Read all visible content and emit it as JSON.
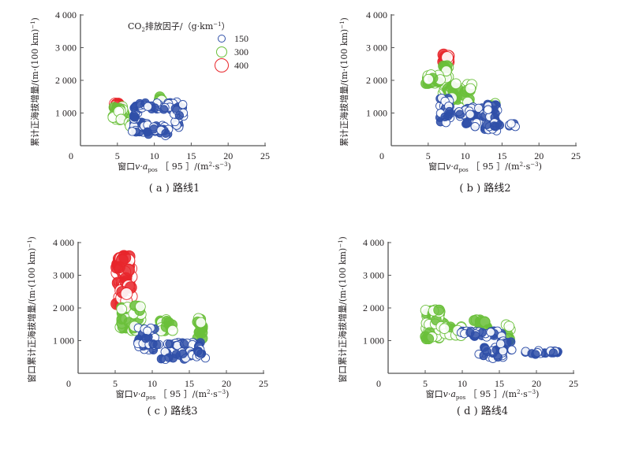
{
  "chart_data": [
    {
      "type": "scatter",
      "panel": "a",
      "caption": "( a ) 路线1",
      "xlabel": "窗口v·a_pos［95］/(m²·s⁻³)",
      "ylabel": "累计正海拔增量/(m·(100 km)⁻¹)",
      "xlim": [
        0,
        25
      ],
      "ylim": [
        0,
        4000
      ],
      "xticks": [
        "0",
        "5",
        "10",
        "15",
        "20",
        "25"
      ],
      "yticks": [
        "1 000",
        "2 000",
        "3 000",
        "4 000"
      ],
      "legend": {
        "title": "CO₂排放因子/（g·km⁻¹）",
        "entries": [
          {
            "label": "150",
            "color": "#2f4fa8"
          },
          {
            "label": "300",
            "color": "#6abf3a"
          },
          {
            "label": "400",
            "color": "#e8262b"
          }
        ],
        "placement": "top-right"
      },
      "clusters": [
        {
          "emission": 400,
          "x": [
            4.6,
            5.2
          ],
          "y": [
            1150,
            1300
          ],
          "n": 10
        },
        {
          "emission": 300,
          "x": [
            4.4,
            6.0
          ],
          "y": [
            750,
            1200
          ],
          "n": 35
        },
        {
          "emission": 300,
          "x": [
            6.5,
            7.2
          ],
          "y": [
            600,
            800
          ],
          "n": 8
        },
        {
          "emission": 300,
          "x": [
            10.5,
            11.2
          ],
          "y": [
            1200,
            1500
          ],
          "n": 14
        },
        {
          "emission": 150,
          "x": [
            7.0,
            9.0
          ],
          "y": [
            400,
            750
          ],
          "n": 40
        },
        {
          "emission": 150,
          "x": [
            7.2,
            7.8
          ],
          "y": [
            800,
            1250
          ],
          "n": 18
        },
        {
          "emission": 150,
          "x": [
            8.0,
            13.5
          ],
          "y": [
            1100,
            1350
          ],
          "n": 30
        },
        {
          "emission": 150,
          "x": [
            9.0,
            12.0
          ],
          "y": [
            300,
            650
          ],
          "n": 22
        },
        {
          "emission": 150,
          "x": [
            12.8,
            13.5
          ],
          "y": [
            550,
            1150
          ],
          "n": 20
        },
        {
          "emission": 150,
          "x": [
            11.0,
            14.2
          ],
          "y": [
            900,
            1300
          ],
          "n": 16
        }
      ]
    },
    {
      "type": "scatter",
      "panel": "b",
      "caption": "( b ) 路线2",
      "xlabel": "窗口v·a_pos［95］/(m²·s⁻³)",
      "ylabel": "累计正海拔增量/(m·(100 km)⁻¹)",
      "xlim": [
        0,
        25
      ],
      "ylim": [
        0,
        4000
      ],
      "xticks": [
        "0",
        "5",
        "10",
        "15",
        "20",
        "25"
      ],
      "yticks": [
        "1 000",
        "2 000",
        "3 000",
        "4 000"
      ],
      "clusters": [
        {
          "emission": 400,
          "x": [
            7.0,
            7.8
          ],
          "y": [
            2550,
            2800
          ],
          "n": 14
        },
        {
          "emission": 300,
          "x": [
            7.0,
            7.8
          ],
          "y": [
            1600,
            2550
          ],
          "n": 30
        },
        {
          "emission": 300,
          "x": [
            4.7,
            7.0
          ],
          "y": [
            1900,
            2200
          ],
          "n": 16
        },
        {
          "emission": 300,
          "x": [
            8.0,
            11.0
          ],
          "y": [
            1300,
            1900
          ],
          "n": 30
        },
        {
          "emission": 300,
          "x": [
            13.5,
            14.3
          ],
          "y": [
            1150,
            1300
          ],
          "n": 5
        },
        {
          "emission": 150,
          "x": [
            6.5,
            8.0
          ],
          "y": [
            700,
            1500
          ],
          "n": 35
        },
        {
          "emission": 150,
          "x": [
            9.0,
            12.5
          ],
          "y": [
            800,
            1200
          ],
          "n": 28
        },
        {
          "emission": 150,
          "x": [
            12.5,
            14.5
          ],
          "y": [
            450,
            1300
          ],
          "n": 35
        },
        {
          "emission": 150,
          "x": [
            10.0,
            17.2
          ],
          "y": [
            580,
            720
          ],
          "n": 18
        }
      ]
    },
    {
      "type": "scatter",
      "panel": "c",
      "caption": "( c ) 路线3",
      "xlabel": "窗口v·a_pos［95］/(m²·s⁻³)",
      "ylabel": "窗口累计正海拔增量/(m·(100 km)⁻¹)",
      "xlim": [
        0,
        25
      ],
      "ylim": [
        0,
        4000
      ],
      "xticks": [
        "0",
        "5",
        "10",
        "15",
        "20",
        "25"
      ],
      "yticks": [
        "1 000",
        "2 000",
        "3 000",
        "4 000"
      ],
      "clusters": [
        {
          "emission": 400,
          "x": [
            5.2,
            7.2
          ],
          "y": [
            2100,
            3600
          ],
          "n": 80
        },
        {
          "emission": 300,
          "x": [
            5.5,
            8.5
          ],
          "y": [
            1300,
            2100
          ],
          "n": 40
        },
        {
          "emission": 300,
          "x": [
            11.0,
            13.0
          ],
          "y": [
            1300,
            1650
          ],
          "n": 14
        },
        {
          "emission": 300,
          "x": [
            16.0,
            16.8
          ],
          "y": [
            1000,
            1700
          ],
          "n": 16
        },
        {
          "emission": 150,
          "x": [
            8.0,
            10.5
          ],
          "y": [
            700,
            1400
          ],
          "n": 30
        },
        {
          "emission": 150,
          "x": [
            10.0,
            16.2
          ],
          "y": [
            850,
            950
          ],
          "n": 25
        },
        {
          "emission": 150,
          "x": [
            11.2,
            17.3
          ],
          "y": [
            400,
            700
          ],
          "n": 30
        },
        {
          "emission": 150,
          "x": [
            16.0,
            16.6
          ],
          "y": [
            550,
            1000
          ],
          "n": 10
        }
      ]
    },
    {
      "type": "scatter",
      "panel": "d",
      "caption": "( d ) 路线4",
      "xlabel": "窗口v·a_pos［95］/(m²·s⁻³)",
      "ylabel": "窗口累计正海拔增量/(m·(100 km)⁻¹)",
      "xlim": [
        0,
        25
      ],
      "ylim": [
        0,
        4000
      ],
      "xticks": [
        "0",
        "5",
        "10",
        "15",
        "20",
        "25"
      ],
      "yticks": [
        "1 000",
        "2 000",
        "3 000",
        "4 000"
      ],
      "clusters": [
        {
          "emission": 300,
          "x": [
            5.0,
            7.5
          ],
          "y": [
            1050,
            1950
          ],
          "n": 50
        },
        {
          "emission": 300,
          "x": [
            7.5,
            10.0
          ],
          "y": [
            1150,
            1450
          ],
          "n": 18
        },
        {
          "emission": 300,
          "x": [
            11.5,
            13.5
          ],
          "y": [
            1300,
            1650
          ],
          "n": 16
        },
        {
          "emission": 300,
          "x": [
            15.8,
            16.5
          ],
          "y": [
            1000,
            1500
          ],
          "n": 12
        },
        {
          "emission": 150,
          "x": [
            9.8,
            15.5
          ],
          "y": [
            1100,
            1300
          ],
          "n": 30
        },
        {
          "emission": 150,
          "x": [
            12.0,
            15.5
          ],
          "y": [
            450,
            800
          ],
          "n": 30
        },
        {
          "emission": 150,
          "x": [
            15.0,
            16.8
          ],
          "y": [
            650,
            1000
          ],
          "n": 12
        },
        {
          "emission": 150,
          "x": [
            18.0,
            23.0
          ],
          "y": [
            550,
            700
          ],
          "n": 22
        }
      ]
    }
  ]
}
